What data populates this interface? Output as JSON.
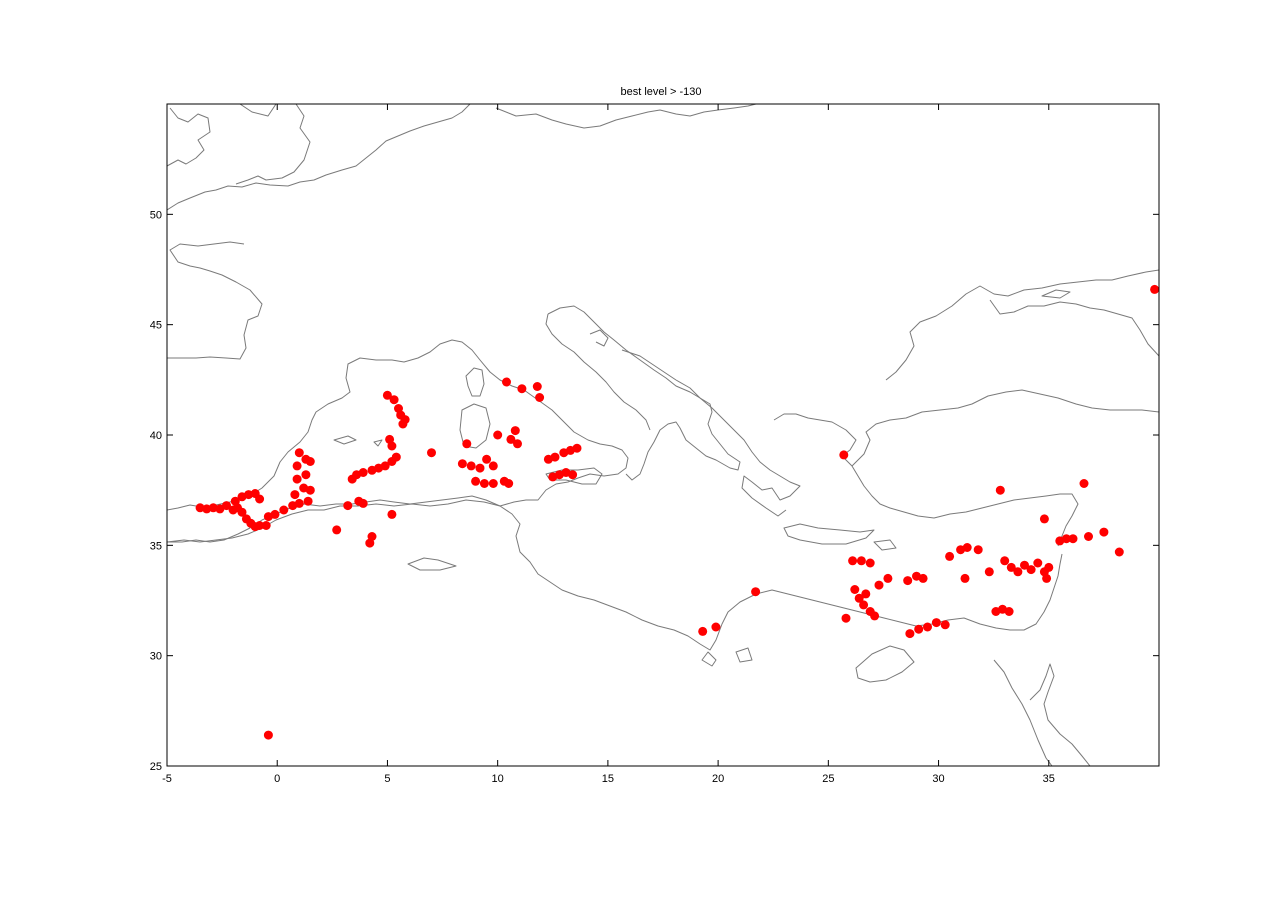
{
  "chart_data": {
    "type": "scatter",
    "title": "best level > -130",
    "xlabel": "",
    "ylabel": "",
    "xlim": [
      -5,
      40
    ],
    "ylim": [
      25,
      55
    ],
    "x_ticks": [
      -5,
      0,
      5,
      10,
      15,
      20,
      25,
      30,
      35
    ],
    "y_ticks": [
      25,
      30,
      35,
      40,
      45,
      50
    ],
    "grid": false,
    "marker_color": "#ff0000",
    "coastline_color": "#7a7a7a",
    "series": [
      {
        "points": [
          [
            -3.5,
            36.7
          ],
          [
            -3.2,
            36.65
          ],
          [
            -2.9,
            36.7
          ],
          [
            -2.6,
            36.65
          ],
          [
            -2.3,
            36.8
          ],
          [
            -2.0,
            36.6
          ],
          [
            -1.8,
            36.7
          ],
          [
            -1.6,
            36.5
          ],
          [
            -1.4,
            36.2
          ],
          [
            -1.2,
            36.0
          ],
          [
            -1.0,
            35.85
          ],
          [
            -0.8,
            35.9
          ],
          [
            -0.5,
            35.9
          ],
          [
            -1.9,
            37.0
          ],
          [
            -1.6,
            37.2
          ],
          [
            -1.3,
            37.3
          ],
          [
            -1.0,
            37.35
          ],
          [
            -0.8,
            37.1
          ],
          [
            -0.4,
            36.3
          ],
          [
            -0.1,
            36.4
          ],
          [
            0.3,
            36.6
          ],
          [
            0.7,
            36.8
          ],
          [
            1.0,
            36.9
          ],
          [
            1.4,
            37.0
          ],
          [
            0.8,
            37.3
          ],
          [
            1.2,
            37.6
          ],
          [
            0.9,
            38.0
          ],
          [
            1.3,
            38.2
          ],
          [
            1.5,
            37.5
          ],
          [
            0.9,
            38.6
          ],
          [
            1.3,
            38.9
          ],
          [
            1.5,
            38.8
          ],
          [
            1.0,
            39.2
          ],
          [
            3.2,
            36.8
          ],
          [
            3.7,
            37.0
          ],
          [
            3.9,
            36.9
          ],
          [
            2.7,
            35.7
          ],
          [
            4.3,
            35.4
          ],
          [
            4.2,
            35.1
          ],
          [
            5.2,
            36.4
          ],
          [
            3.4,
            38.0
          ],
          [
            3.6,
            38.2
          ],
          [
            3.9,
            38.3
          ],
          [
            4.3,
            38.4
          ],
          [
            4.6,
            38.5
          ],
          [
            4.9,
            38.6
          ],
          [
            5.2,
            38.8
          ],
          [
            5.4,
            39.0
          ],
          [
            5.2,
            39.5
          ],
          [
            5.1,
            39.8
          ],
          [
            5.0,
            41.8
          ],
          [
            5.3,
            41.6
          ],
          [
            5.5,
            41.2
          ],
          [
            5.6,
            40.9
          ],
          [
            5.8,
            40.7
          ],
          [
            5.7,
            40.5
          ],
          [
            7.0,
            39.2
          ],
          [
            8.4,
            38.7
          ],
          [
            8.6,
            39.6
          ],
          [
            8.8,
            38.6
          ],
          [
            9.2,
            38.5
          ],
          [
            9.5,
            38.9
          ],
          [
            9.8,
            38.6
          ],
          [
            9.0,
            37.9
          ],
          [
            9.4,
            37.8
          ],
          [
            9.8,
            37.8
          ],
          [
            10.3,
            37.9
          ],
          [
            10.5,
            37.8
          ],
          [
            10.0,
            40.0
          ],
          [
            10.4,
            42.4
          ],
          [
            11.1,
            42.1
          ],
          [
            11.8,
            42.2
          ],
          [
            11.9,
            41.7
          ],
          [
            10.6,
            39.8
          ],
          [
            10.8,
            40.2
          ],
          [
            10.9,
            39.6
          ],
          [
            12.3,
            38.9
          ],
          [
            12.6,
            39.0
          ],
          [
            13.0,
            39.2
          ],
          [
            13.3,
            39.3
          ],
          [
            13.6,
            39.4
          ],
          [
            12.5,
            38.1
          ],
          [
            12.8,
            38.2
          ],
          [
            13.1,
            38.3
          ],
          [
            13.4,
            38.2
          ],
          [
            19.3,
            31.1
          ],
          [
            19.9,
            31.3
          ],
          [
            21.7,
            32.9
          ],
          [
            25.7,
            39.1
          ],
          [
            25.8,
            31.7
          ],
          [
            26.1,
            34.3
          ],
          [
            26.5,
            34.3
          ],
          [
            26.9,
            34.2
          ],
          [
            26.2,
            33.0
          ],
          [
            26.4,
            32.6
          ],
          [
            26.6,
            32.3
          ],
          [
            26.9,
            32.0
          ],
          [
            27.1,
            31.8
          ],
          [
            26.7,
            32.8
          ],
          [
            27.3,
            33.2
          ],
          [
            27.7,
            33.5
          ],
          [
            28.6,
            33.4
          ],
          [
            29.0,
            33.6
          ],
          [
            29.3,
            33.5
          ],
          [
            28.7,
            31.0
          ],
          [
            29.1,
            31.2
          ],
          [
            29.5,
            31.3
          ],
          [
            29.9,
            31.5
          ],
          [
            30.3,
            31.4
          ],
          [
            30.5,
            34.5
          ],
          [
            31.0,
            34.8
          ],
          [
            31.3,
            34.9
          ],
          [
            31.2,
            33.5
          ],
          [
            31.8,
            34.8
          ],
          [
            32.3,
            33.8
          ],
          [
            32.6,
            32.0
          ],
          [
            32.9,
            32.1
          ],
          [
            33.2,
            32.0
          ],
          [
            33.0,
            34.3
          ],
          [
            33.3,
            34.0
          ],
          [
            33.6,
            33.8
          ],
          [
            33.9,
            34.1
          ],
          [
            34.2,
            33.9
          ],
          [
            34.5,
            34.2
          ],
          [
            34.8,
            33.8
          ],
          [
            34.9,
            33.5
          ],
          [
            35.0,
            34.0
          ],
          [
            35.5,
            35.2
          ],
          [
            35.8,
            35.3
          ],
          [
            36.1,
            35.3
          ],
          [
            34.8,
            36.2
          ],
          [
            32.8,
            37.5
          ],
          [
            36.6,
            37.8
          ],
          [
            36.8,
            35.4
          ],
          [
            37.5,
            35.6
          ],
          [
            38.2,
            34.7
          ],
          [
            39.8,
            46.6
          ],
          [
            -0.4,
            26.4
          ]
        ]
      }
    ]
  }
}
